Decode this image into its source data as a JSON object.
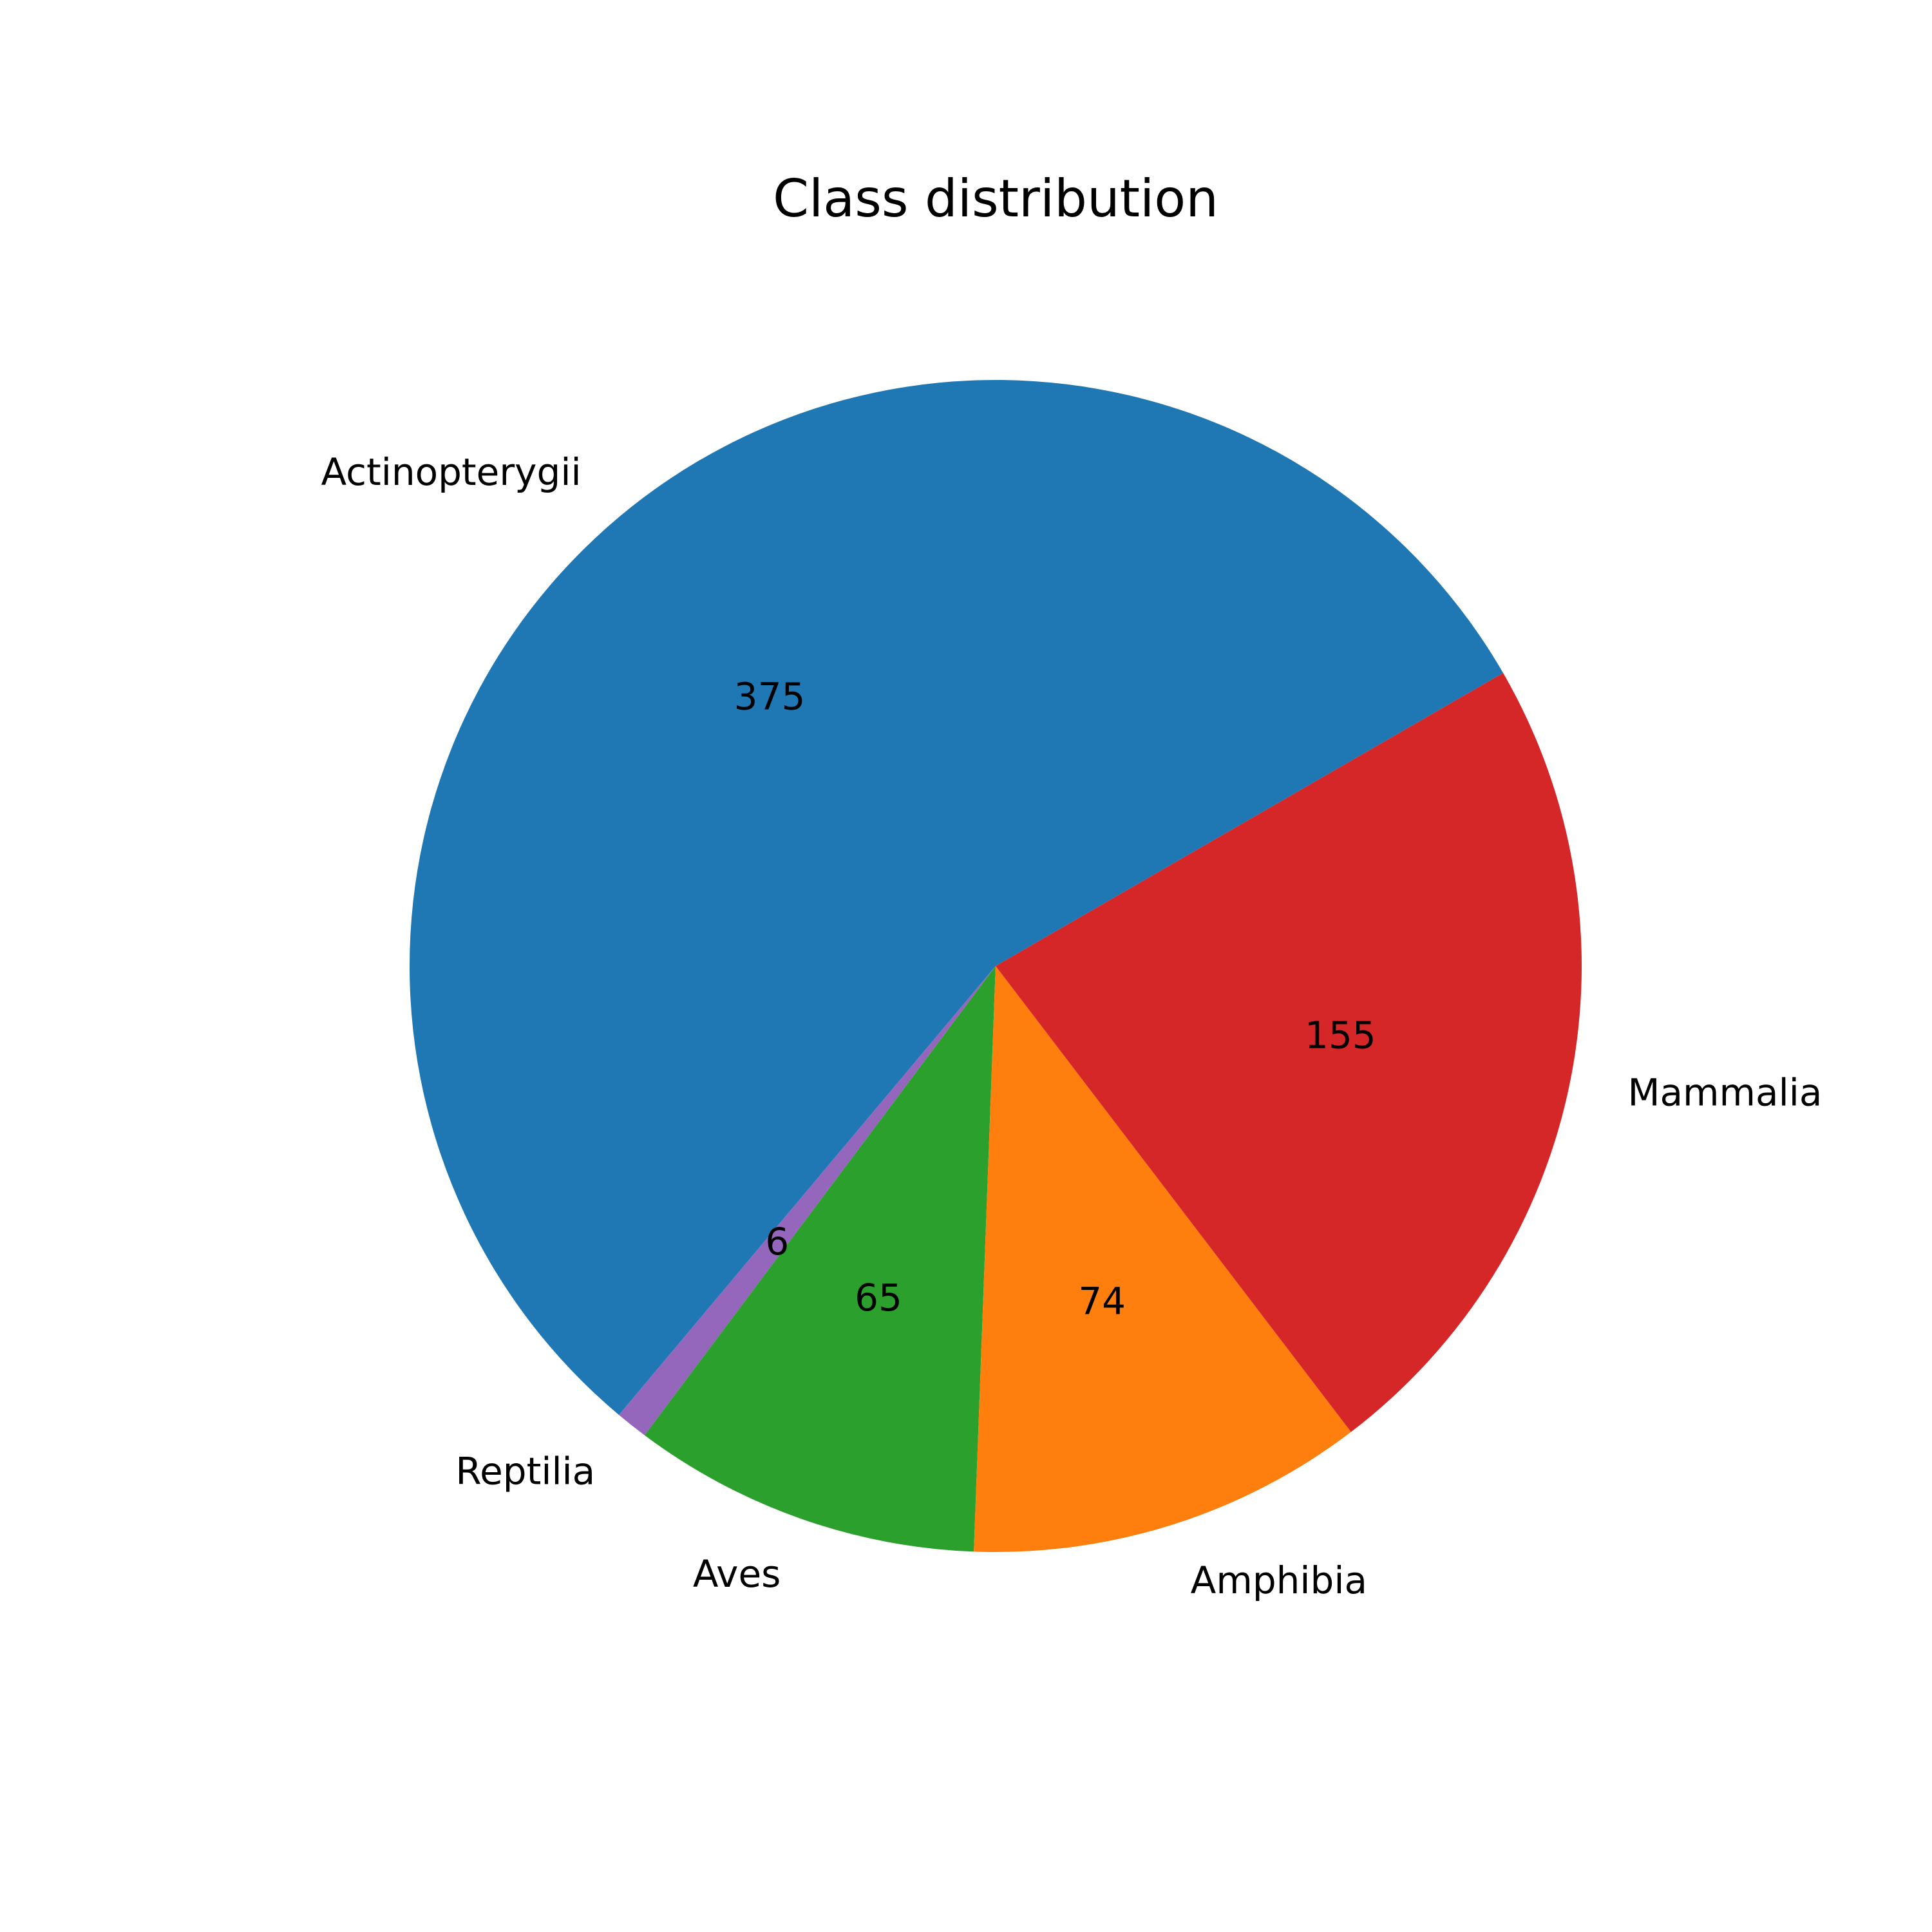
{
  "chart_data": {
    "type": "pie",
    "title": "Class distribution",
    "slices": [
      {
        "label": "Actinopterygii",
        "value": 375,
        "color": "#1f77b4"
      },
      {
        "label": "Reptilia",
        "value": 6,
        "color": "#9467bd"
      },
      {
        "label": "Aves",
        "value": 65,
        "color": "#2ca02c"
      },
      {
        "label": "Amphibia",
        "value": 74,
        "color": "#ff7f0e"
      },
      {
        "label": "Mammalia",
        "value": 155,
        "color": "#d62728"
      }
    ],
    "legend": "none",
    "direction": "counterclockwise"
  }
}
